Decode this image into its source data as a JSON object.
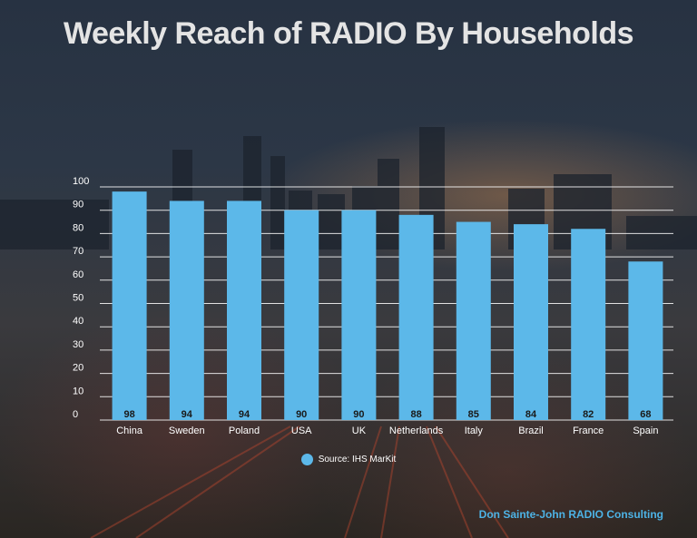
{
  "colors": {
    "bar": "#5cb8e9",
    "grid": "#ffffff",
    "text": "#ffffff",
    "credit": "#4db3e6"
  },
  "credit_text": "Don Sainte-John RADIO Consulting",
  "chart_data": {
    "type": "bar",
    "title": "Weekly Reach of RADIO By Households",
    "categories": [
      "China",
      "Sweden",
      "Poland",
      "USA",
      "UK",
      "Netherlands",
      "Italy",
      "Brazil",
      "France",
      "Spain"
    ],
    "series": [
      {
        "name": "Source: IHS MarKit",
        "values": [
          98,
          94,
          94,
          90,
          90,
          88,
          85,
          84,
          82,
          68
        ]
      }
    ],
    "yticks": [
      0,
      10,
      20,
      30,
      40,
      50,
      60,
      70,
      80,
      90,
      100
    ],
    "ylim": [
      0,
      100
    ],
    "grid": true,
    "legend_position": "bottom",
    "data_labels": "inside-bottom"
  }
}
